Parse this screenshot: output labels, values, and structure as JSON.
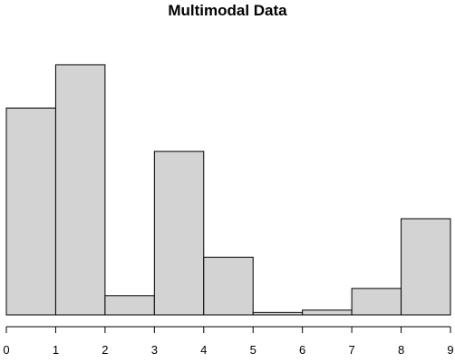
{
  "chart_data": {
    "type": "bar",
    "title": "Multimodal Data",
    "xlabel": "",
    "ylabel": "",
    "bin_edges": [
      0,
      1,
      2,
      3,
      4,
      5,
      6,
      7,
      8,
      9
    ],
    "values": [
      43,
      52,
      4,
      34,
      12,
      0.5,
      1,
      5.5,
      20
    ],
    "ylim": [
      0,
      60
    ],
    "xticks": [
      "0",
      "1",
      "2",
      "3",
      "4",
      "5",
      "6",
      "7",
      "8",
      "9"
    ],
    "y_axis_shown": false,
    "grid": false,
    "bar_fill": "#d3d3d3",
    "bar_stroke": "#000000"
  }
}
